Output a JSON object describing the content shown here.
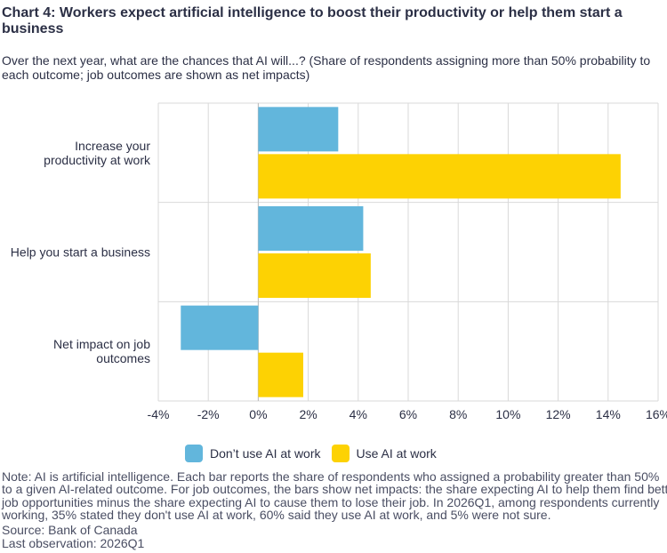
{
  "title": "Chart 4: Workers expect artificial intelligence to boost their productivity or help them start a\nbusiness",
  "subtitle": "Over the next year, what are the chances that AI will...? (Share of respondents assigning more than 50% probability to\neach outcome; job outcomes are shown as net impacts)",
  "colors": {
    "dont_use": "#62b6dc",
    "use": "#fdd203",
    "grid": "#d9d9d9",
    "text": "#2b2f45"
  },
  "chart_data": {
    "type": "bar",
    "orientation": "horizontal",
    "categories": [
      "Increase your\nproductivity at work",
      "Help you start a business",
      "Net impact on job\noutcomes"
    ],
    "series": [
      {
        "name": "Don’t use AI at work",
        "values": [
          3.2,
          4.2,
          -3.1
        ]
      },
      {
        "name": "Use AI at work",
        "values": [
          14.5,
          4.5,
          1.8
        ]
      }
    ],
    "xlim": [
      -4,
      16
    ],
    "xticks": [
      "-4%",
      "-2%",
      "0%",
      "2%",
      "4%",
      "6%",
      "8%",
      "10%",
      "12%",
      "14%",
      "16%"
    ],
    "grid": true,
    "legend_position": "bottom"
  },
  "note": "Note: AI is artificial intelligence. Each bar reports the share of respondents who assigned a probability greater than 50%\nto a given AI-related outcome. For job outcomes, the bars show net impacts: the share expecting AI to help them find better\njob opportunities minus the share expecting AI to cause them to lose their job. In 2026Q1, among respondents currently\nworking, 35% stated they don't use AI at work, 60% said they use AI at work, and 5% were not sure.",
  "source": "Source: Bank of Canada",
  "last_observation": "Last observation: 2026Q1"
}
